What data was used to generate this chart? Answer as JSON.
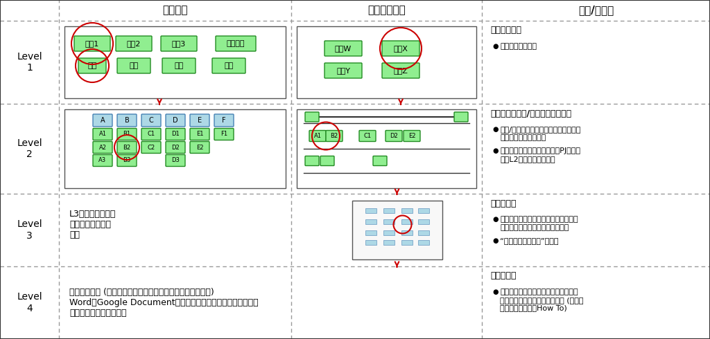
{
  "title_col1": "組織視点",
  "title_col2": "組織横断視点",
  "title_col3": "目的/粒度感",
  "bg_color": "#ffffff",
  "border_color": "#333333",
  "dashed_color": "#999999",
  "green_box_face": "#90EE90",
  "green_box_edge": "#228B22",
  "blue_box_face": "#add8e6",
  "blue_box_edge": "#4682b4",
  "red_circle_color": "#cc0000",
  "arrow_color": "#cc0000",
  "row_labels": [
    "Level\n1",
    "Level\n2",
    "Level\n3",
    "Level\n4"
  ],
  "level1_org_boxes": [
    [
      "本部1",
      "本部2",
      "本部3",
      "開発本部"
    ],
    [
      "人事",
      "総務",
      "経理",
      "法務"
    ]
  ],
  "level1_cross_boxes": [
    [
      "事業W",
      "事業X"
    ],
    [
      "事業Y",
      "事業Z"
    ]
  ],
  "level2_blue_row": [
    "A",
    "B",
    "C",
    "D",
    "E",
    "F"
  ],
  "level2_green_rows": [
    [
      "A1",
      "B1",
      "C1",
      "D1",
      "E1",
      "F1"
    ],
    [
      "A2",
      "B2",
      "C2",
      "D2",
      "E2"
    ],
    [
      "A3",
      "B3",
      "D3"
    ]
  ],
  "level2_cross_labels": [
    "A1",
    "B2",
    "C1",
    "D2",
    "E2"
  ],
  "level3_text": "L3では同じ業務フ\nローを共有すると\n良い",
  "level4_text": "体裁は問わず (属人化させないよう、出来るだけシンプルに)\nWordやGoogle Documentなどの文書ツールで、作業手順を連\n番・箇条書きで記述する",
  "level1_title": "インデックス",
  "level1_bullets": [
    "全社レベルの目次"
  ],
  "level2_title": "プロセスマップ/バリューチェーン",
  "level2_bullets": [
    "役員/管理職クラスが理解でき、議論や\n改善指示ができること",
    "業務改革やシステム導入ではPJスコー\nプをL2で語ることが多い"
  ],
  "level3_title": "業務フロー",
  "level3_bullets": [
    "その業務を実際に行う担当者どうしが\n理解でき、現実と乖離がないこと",
    "“ハンドオフの单位”で描く"
  ],
  "level4_title": "業務手順書",
  "level4_bullets": [
    "その業務を実際に行う担当者が自分の\n中でわかっておけば良いレベル (システ\nム操作や作業上のHow To)"
  ]
}
